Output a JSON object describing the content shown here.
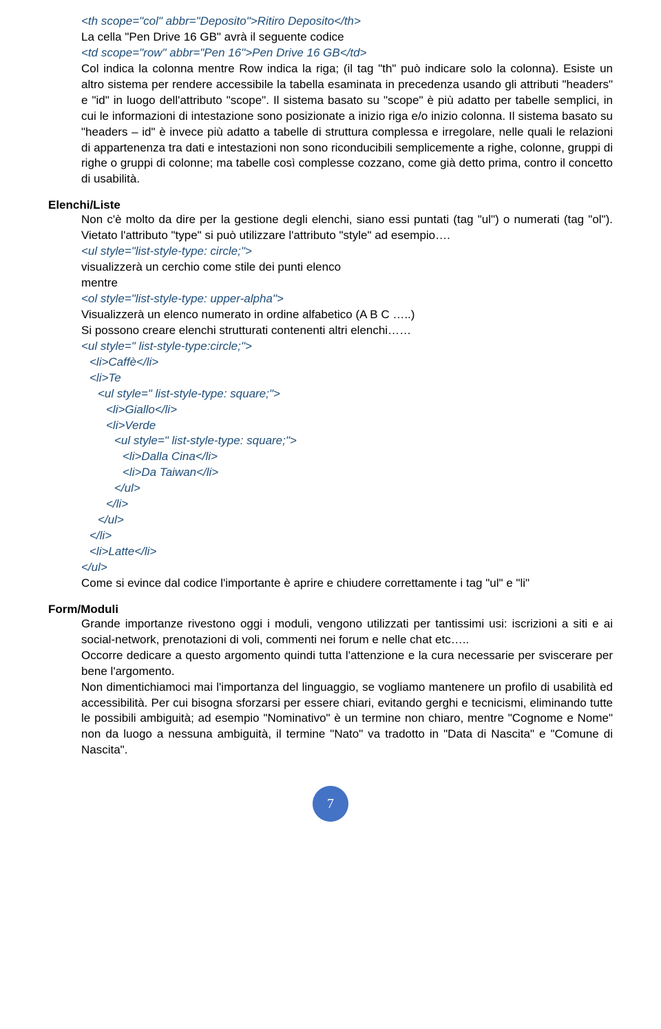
{
  "top_block": {
    "line1": "<th scope=\"col\" abbr=\"Deposito\">Ritiro Deposito</th>",
    "line2": "La cella \"Pen Drive 16 GB\" avrà il seguente codice",
    "line3": "<td scope=\"row\" abbr=\"Pen 16\">Pen Drive 16 GB</td>",
    "para": "Col indica la colonna mentre Row indica la riga; (il tag \"th\" può indicare solo la colonna). Esiste un altro sistema per rendere accessibile la tabella esaminata in precedenza usando gli attributi \"headers\" e \"id\" in luogo dell'attributo \"scope\". Il sistema basato su \"scope\" è più adatto per tabelle semplici, in cui le informazioni di intestazione sono posizionate a inizio riga e/o inizio colonna. Il sistema basato su \"headers – id\" è invece più adatto a tabelle di struttura complessa e irregolare, nelle quali le relazioni di appartenenza tra dati e intestazioni non sono riconducibili semplicemente a righe, colonne, gruppi di righe o gruppi di colonne; ma tabelle così complesse cozzano, come già detto prima, contro il concetto di usabilità."
  },
  "elenchi": {
    "title": "Elenchi/Liste",
    "p1": "Non c'è molto da dire per la gestione degli elenchi, siano essi puntati (tag \"ul\") o numerati (tag \"ol\"). Vietato l'attributo \"type\" si può utilizzare l'attributo \"style\" ad esempio….",
    "code1": "<ul style=\"list-style-type: circle;\">",
    "p2": "visualizzerà un cerchio come stile dei punti elenco",
    "p3": "mentre",
    "code2": "<ol style=\"list-style-type: upper-alpha\">",
    "p4": "Visualizzerà un elenco numerato in ordine alfabetico (A B C …..)",
    "p5": "Si possono creare elenchi strutturati contenenti altri elenchi……",
    "code_lines": [
      {
        "text": "<ul style=\" list-style-type:circle;\">",
        "indent": 0
      },
      {
        "text": "<li>Caffè</li>",
        "indent": 1
      },
      {
        "text": "<li>Te",
        "indent": 1
      },
      {
        "text": "<ul style=\" list-style-type: square;\">",
        "indent": 2
      },
      {
        "text": "<li>Giallo</li>",
        "indent": 3
      },
      {
        "text": "<li>Verde",
        "indent": 3
      },
      {
        "text": "<ul style=\" list-style-type: square;\">",
        "indent": 4
      },
      {
        "text": "<li>Dalla Cina</li>",
        "indent": 5
      },
      {
        "text": "<li>Da Taiwan</li>",
        "indent": 5
      },
      {
        "text": "</ul>",
        "indent": 4
      },
      {
        "text": "</li>",
        "indent": 3
      },
      {
        "text": "</ul>",
        "indent": 2
      },
      {
        "text": "</li>",
        "indent": 1
      },
      {
        "text": "<li>Latte</li>",
        "indent": 1
      },
      {
        "text": "</ul>",
        "indent": 0
      }
    ],
    "p6": "Come si evince dal codice l'importante è aprire e chiudere correttamente i tag \"ul\" e \"li\""
  },
  "form": {
    "title": "Form/Moduli",
    "p1": "Grande importanze rivestono oggi i moduli, vengono utilizzati per tantissimi usi: iscrizioni a siti e ai social-network, prenotazioni di voli, commenti nei forum e nelle chat etc…..",
    "p2": "Occorre dedicare a questo argomento quindi tutta l'attenzione e la cura necessarie per sviscerare per bene l'argomento.",
    "p3": "Non dimentichiamoci mai l'importanza del linguaggio, se vogliamo mantenere un profilo di usabilità ed accessibilità. Per cui bisogna sforzarsi per essere chiari, evitando gerghi e tecnicismi, eliminando tutte le possibili ambiguità; ad esempio \"Nominativo\" è un termine non chiaro, mentre \"Cognome e Nome\" non da  luogo a nessuna ambiguità, il termine \"Nato\" va tradotto in \"Data di Nascita\" e \"Comune di Nascita\"."
  },
  "page_number": "7",
  "colors": {
    "code_blue": "#1f4e79",
    "page_badge_bg": "#4472c4",
    "page_badge_fg": "#ffffff",
    "text": "#000000"
  }
}
